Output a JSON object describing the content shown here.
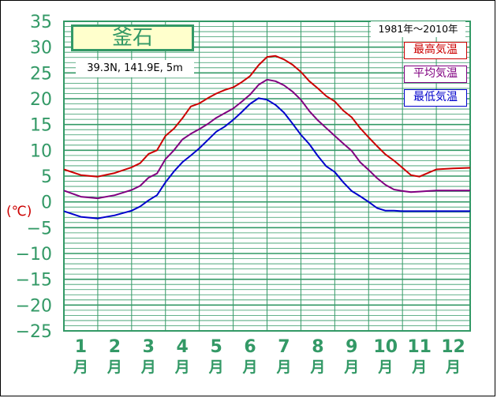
{
  "station": {
    "name": "釜石",
    "coords": "39.3N,  141.9E,  5m",
    "period": "1981年〜2010年"
  },
  "legend": {
    "max": "最高気温",
    "avg": "平均気温",
    "min": "最低気温"
  },
  "colors": {
    "max": "#cc0000",
    "avg": "#800080",
    "min": "#0000cc",
    "axis_text": "#339966",
    "grid": "#339966"
  },
  "chart_data": {
    "type": "line",
    "title": "釜石",
    "ylabel": "(℃)",
    "ylim": [
      -25,
      35
    ],
    "yticks": [
      "35",
      "30",
      "25",
      "20",
      "15",
      "10",
      "5",
      "0",
      "−5",
      "−10",
      "−15",
      "−20",
      "−25"
    ],
    "months": [
      {
        "num": "1",
        "unit": "月"
      },
      {
        "num": "2",
        "unit": "月"
      },
      {
        "num": "3",
        "unit": "月"
      },
      {
        "num": "4",
        "unit": "月"
      },
      {
        "num": "5",
        "unit": "月"
      },
      {
        "num": "6",
        "unit": "月"
      },
      {
        "num": "7",
        "unit": "月"
      },
      {
        "num": "8",
        "unit": "月"
      },
      {
        "num": "9",
        "unit": "月"
      },
      {
        "num": "10",
        "unit": "月"
      },
      {
        "num": "11",
        "unit": "月"
      },
      {
        "num": "12",
        "unit": "月"
      }
    ],
    "x_months": [
      0,
      0.5,
      1,
      1.5,
      2,
      2.25,
      2.5,
      2.75,
      3,
      3.25,
      3.5,
      3.75,
      4,
      4.25,
      4.5,
      4.75,
      5,
      5.25,
      5.5,
      5.75,
      6,
      6.25,
      6.5,
      6.75,
      7,
      7.25,
      7.5,
      7.75,
      8,
      8.25,
      8.5,
      8.75,
      9,
      9.25,
      9.5,
      9.75,
      10,
      10.25,
      10.5,
      10.75,
      11,
      11.5,
      12
    ],
    "series": [
      {
        "name": "最高気温",
        "values": [
          6.3,
          5.2,
          4.9,
          5.6,
          6.7,
          7.5,
          9.3,
          10.0,
          12.8,
          14.2,
          16.2,
          18.5,
          19.1,
          20.1,
          21.0,
          21.7,
          22.2,
          23.2,
          24.4,
          26.5,
          28.1,
          28.3,
          27.6,
          26.6,
          25.2,
          23.4,
          22.0,
          20.5,
          19.5,
          17.7,
          16.4,
          14.3,
          12.5,
          10.8,
          9.2,
          8.0,
          6.6,
          5.2,
          4.9,
          5.6,
          6.3,
          6.5,
          6.6
        ]
      },
      {
        "name": "平均気温",
        "values": [
          2.2,
          1.0,
          0.7,
          1.3,
          2.3,
          3.1,
          4.7,
          5.5,
          8.3,
          10.0,
          12.1,
          13.2,
          14.1,
          15.1,
          16.3,
          17.2,
          18.1,
          19.4,
          20.8,
          22.7,
          23.7,
          23.4,
          22.6,
          21.4,
          19.8,
          17.6,
          15.8,
          14.3,
          12.8,
          11.3,
          9.9,
          7.7,
          6.2,
          4.6,
          3.3,
          2.4,
          2.1,
          1.9,
          2.0,
          2.1,
          2.2,
          2.2,
          2.2
        ]
      },
      {
        "name": "最低気温",
        "values": [
          -1.8,
          -2.9,
          -3.2,
          -2.6,
          -1.7,
          -0.9,
          0.3,
          1.3,
          3.8,
          5.9,
          7.7,
          9.0,
          10.4,
          12.0,
          13.6,
          14.6,
          15.9,
          17.4,
          19.0,
          20.1,
          19.8,
          18.8,
          17.3,
          15.2,
          13.0,
          11.2,
          8.9,
          6.9,
          5.8,
          3.8,
          2.1,
          1.1,
          0.0,
          -1.2,
          -1.7,
          -1.7,
          -1.8,
          -1.8,
          -1.8,
          -1.8,
          -1.8,
          -1.8,
          -1.8
        ]
      }
    ]
  }
}
